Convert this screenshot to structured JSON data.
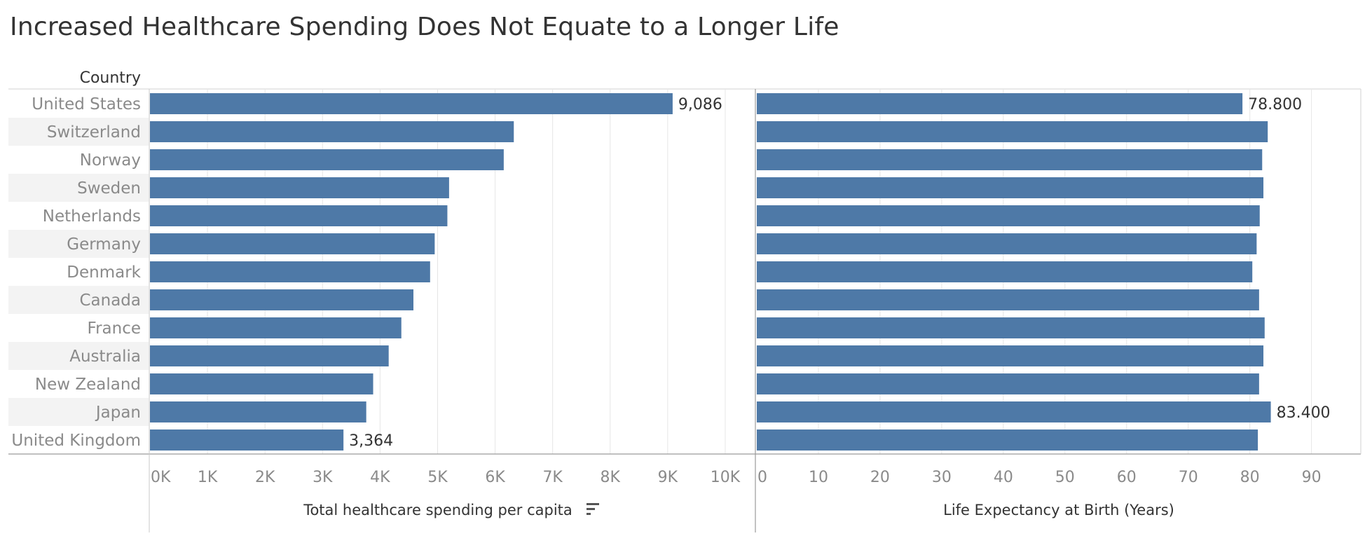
{
  "title": "Increased Healthcare Spending Does Not Equate to a Longer Life",
  "row_header": "Country",
  "colors": {
    "bar": "#4e79a7",
    "band": "#f3f3f3",
    "grid": "#e6e6e6",
    "axis_text": "#8a8a8a",
    "label_text": "#333333"
  },
  "chart_data": [
    {
      "type": "bar",
      "orientation": "horizontal",
      "xlabel": "Total healthcare spending per capita",
      "sort_icon": "sort-descending-icon",
      "categories": [
        "United States",
        "Switzerland",
        "Norway",
        "Sweden",
        "Netherlands",
        "Germany",
        "Denmark",
        "Canada",
        "France",
        "Australia",
        "New Zealand",
        "Japan",
        "United Kingdom"
      ],
      "values": [
        9086,
        6325,
        6150,
        5200,
        5170,
        4950,
        4870,
        4580,
        4370,
        4150,
        3880,
        3760,
        3364
      ],
      "xlim": [
        0,
        10500
      ],
      "ticks": [
        0,
        1000,
        2000,
        3000,
        4000,
        5000,
        6000,
        7000,
        8000,
        9000,
        10000
      ],
      "tick_labels": [
        "0K",
        "1K",
        "2K",
        "3K",
        "4K",
        "5K",
        "6K",
        "7K",
        "8K",
        "9K",
        "10K"
      ],
      "data_labels": {
        "United States": "9,086",
        "United Kingdom": "3,364"
      },
      "grid": true
    },
    {
      "type": "bar",
      "orientation": "horizontal",
      "xlabel": "Life Expectancy at Birth (Years)",
      "categories": [
        "United States",
        "Switzerland",
        "Norway",
        "Sweden",
        "Netherlands",
        "Germany",
        "Denmark",
        "Canada",
        "France",
        "Australia",
        "New Zealand",
        "Japan",
        "United Kingdom"
      ],
      "values": [
        78.8,
        82.9,
        82.0,
        82.2,
        81.6,
        81.1,
        80.4,
        81.5,
        82.4,
        82.2,
        81.5,
        83.4,
        81.3
      ],
      "xlim": [
        0,
        98
      ],
      "ticks": [
        0,
        10,
        20,
        30,
        40,
        50,
        60,
        70,
        80,
        90
      ],
      "tick_labels": [
        "0",
        "10",
        "20",
        "30",
        "40",
        "50",
        "60",
        "70",
        "80",
        "90"
      ],
      "data_labels": {
        "United States": "78.800",
        "Japan": "83.400"
      },
      "grid": true
    }
  ]
}
